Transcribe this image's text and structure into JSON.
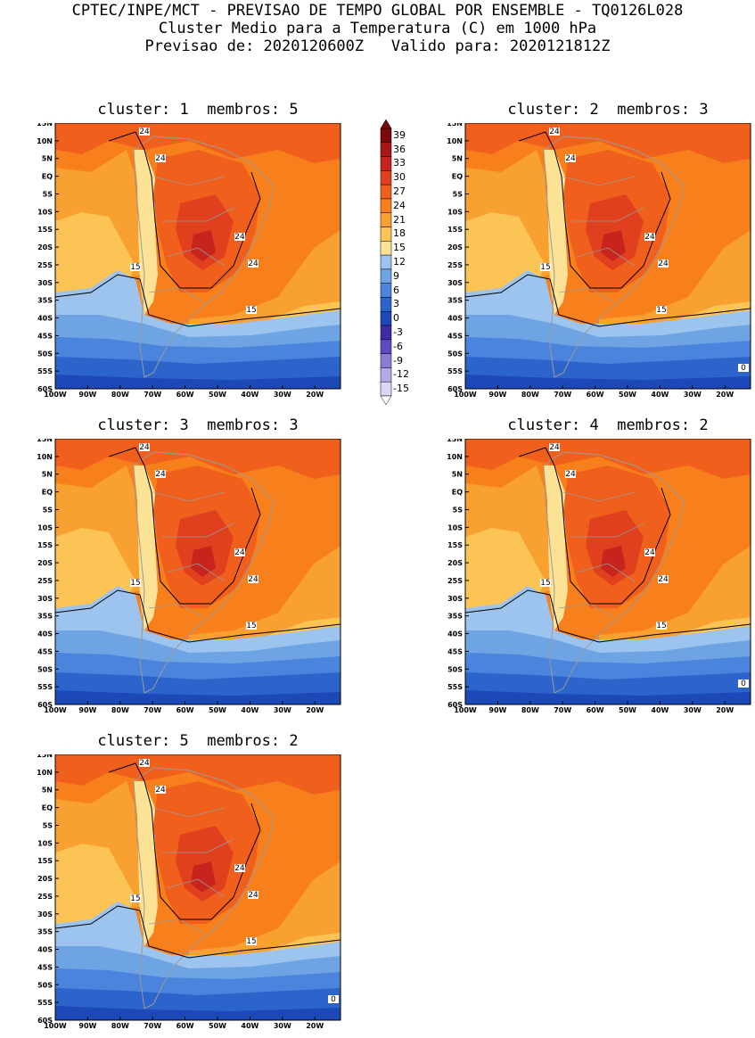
{
  "header": {
    "line1": "CPTEC/INPE/MCT - PREVISAO DE TEMPO GLOBAL POR ENSEMBLE - TQ0126L028",
    "line2": "Cluster Medio para a Temperatura (C) em 1000 hPa",
    "line3": "Previsao de: 2020120600Z   Valido para: 2020121812Z"
  },
  "lat_ticks": [
    "15N",
    "10N",
    "5N",
    "EQ",
    "5S",
    "10S",
    "15S",
    "20S",
    "25S",
    "30S",
    "35S",
    "40S",
    "45S",
    "50S",
    "55S",
    "60S"
  ],
  "lon_ticks": [
    "100W",
    "90W",
    "80W",
    "70W",
    "60W",
    "50W",
    "40W",
    "30W",
    "20W"
  ],
  "colorbar": {
    "labels": [
      "39",
      "36",
      "33",
      "30",
      "27",
      "24",
      "21",
      "18",
      "15",
      "12",
      "9",
      "6",
      "3",
      "0",
      "-3",
      "-6",
      "-9",
      "-12",
      "-15"
    ],
    "colors": [
      "#7a0a0a",
      "#a81616",
      "#c8241e",
      "#e0401e",
      "#f0601c",
      "#f7801c",
      "#f8a030",
      "#fbc454",
      "#fce294",
      "#9cc4ee",
      "#6ea4e4",
      "#4a84dc",
      "#2c64cc",
      "#1c48b8",
      "#3c2ca8",
      "#5c4cc0",
      "#8a7cd4",
      "#b6aae6",
      "#dcd6f4"
    ]
  },
  "clusters": [
    {
      "title": "cluster: 1  membros: 5",
      "labels": {
        "a": "24",
        "b": "24",
        "c": "24",
        "d": "24",
        "e": "15",
        "f": "15"
      }
    },
    {
      "title": "cluster: 2  membros: 3",
      "labels": {
        "a": "24",
        "b": "24",
        "c": "24",
        "d": "24",
        "e": "15",
        "f": "15",
        "g": "0"
      }
    },
    {
      "title": "cluster: 3  membros: 3",
      "labels": {
        "a": "24",
        "b": "24",
        "c": "24",
        "d": "24",
        "e": "15",
        "f": "15"
      }
    },
    {
      "title": "cluster: 4  membros: 2",
      "labels": {
        "a": "24",
        "b": "24",
        "c": "24",
        "d": "24",
        "e": "15",
        "f": "15",
        "g": "0"
      }
    },
    {
      "title": "cluster: 5  membros: 2",
      "labels": {
        "a": "24",
        "b": "24",
        "c": "24",
        "d": "24",
        "e": "15",
        "f": "15",
        "g": "0"
      }
    }
  ]
}
